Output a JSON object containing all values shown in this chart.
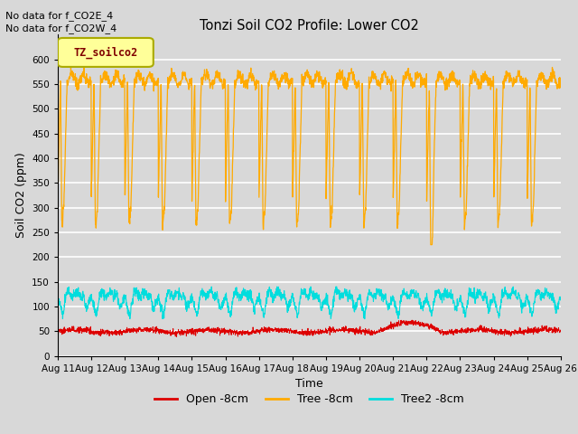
{
  "title": "Tonzi Soil CO2 Profile: Lower CO2",
  "xlabel": "Time",
  "ylabel": "Soil CO2 (ppm)",
  "annotations": [
    "No data for f_CO2E_4",
    "No data for f_CO2W_4"
  ],
  "legend_label": "TZ_soilco2",
  "series_labels": [
    "Open -8cm",
    "Tree -8cm",
    "Tree2 -8cm"
  ],
  "series_colors": [
    "#dd0000",
    "#ffaa00",
    "#00dddd"
  ],
  "ylim": [
    0,
    650
  ],
  "yticks": [
    0,
    50,
    100,
    150,
    200,
    250,
    300,
    350,
    400,
    450,
    500,
    550,
    600
  ],
  "xtick_labels": [
    "Aug 11",
    "Aug 12",
    "Aug 13",
    "Aug 14",
    "Aug 15",
    "Aug 16",
    "Aug 17",
    "Aug 18",
    "Aug 19",
    "Aug 20",
    "Aug 21",
    "Aug 22",
    "Aug 23",
    "Aug 24",
    "Aug 25",
    "Aug 26"
  ],
  "n_days": 15,
  "bg_color": "#d8d8d8",
  "plot_bg_color": "#d8d8d8",
  "grid_color": "#ffffff",
  "legend_box_color": "#ffff99",
  "legend_text_color": "#800000",
  "annotation_color": "#000000"
}
